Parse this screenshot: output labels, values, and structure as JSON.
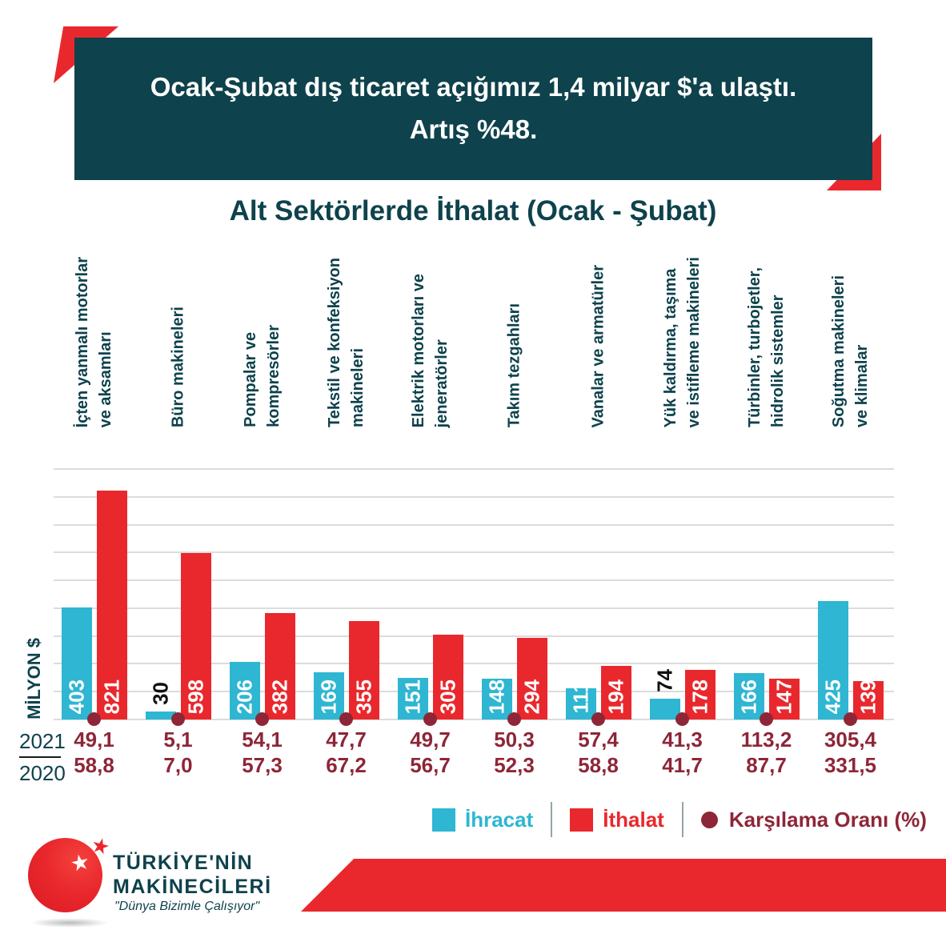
{
  "header": {
    "line1": "Ocak-Şubat dış ticaret açığımız 1,4 milyar $'a ulaştı.",
    "line2": "Artış %48."
  },
  "chart_data": {
    "type": "bar",
    "title": "Alt Sektörlerde İthalat (Ocak - Şubat)",
    "ylabel": "MİLYON $",
    "ylim": [
      0,
      900
    ],
    "grid": true,
    "gridline_step": 100,
    "legend_position": "bottom",
    "categories": [
      "İçten yanmalı motorlar\nve aksamları",
      "Büro makineleri",
      "Pompalar ve\nkompresörler",
      "Tekstil ve konfeksiyon\nmakineleri",
      "Elektrik motorları ve\njeneratörler",
      "Takım tezgahları",
      "Vanalar ve armatürler",
      "Yük kaldırma, taşıma\nve istifleme makineleri",
      "Türbinler, turbojetler,\nhidrolik sistemler",
      "Soğutma makineleri\nve klimalar"
    ],
    "series": [
      {
        "name": "İhracat",
        "color": "#2eb6d2",
        "values": [
          403,
          30,
          206,
          169,
          151,
          148,
          111,
          74,
          166,
          425
        ]
      },
      {
        "name": "İthalat",
        "color": "#e9282d",
        "values": [
          821,
          598,
          382,
          355,
          305,
          294,
          194,
          178,
          147,
          139
        ]
      }
    ],
    "coverage": {
      "name": "Karşılama Oranı (%)",
      "color": "#8e2638",
      "rows": [
        {
          "year": "2021",
          "values": [
            "49,1",
            "5,1",
            "54,1",
            "47,7",
            "49,7",
            "50,3",
            "57,4",
            "41,3",
            "113,2",
            "305,4"
          ]
        },
        {
          "year": "2020",
          "values": [
            "58,8",
            "7,0",
            "57,3",
            "67,2",
            "56,7",
            "52,3",
            "58,8",
            "41,7",
            "87,7",
            "331,5"
          ]
        }
      ]
    }
  },
  "legend": {
    "export_label": "İhracat",
    "import_label": "İthalat",
    "coverage_label": "Karşılama Oranı (%)"
  },
  "logo": {
    "title_line1": "TÜRKİYE'NİN",
    "title_line2": "MAKİNECİLERİ",
    "tagline": "\"Dünya Bizimle Çalışıyor\""
  },
  "colors": {
    "teal": "#0e424c",
    "red": "#e9282d",
    "cyan": "#2eb6d2",
    "maroon": "#8e2638",
    "gridline": "#dcdcdc"
  }
}
